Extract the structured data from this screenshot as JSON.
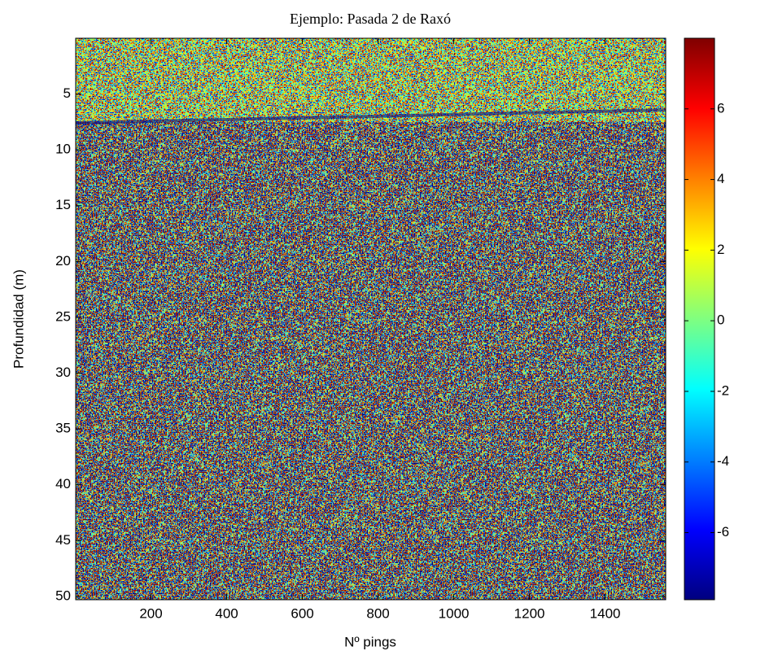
{
  "chart_data": {
    "type": "heatmap",
    "title": "Ejemplo: Pasada 2 de Raxó",
    "x_label": "Nº pings",
    "y_label": "Profundidad (m)",
    "xlim": [
      1,
      1560
    ],
    "xticks": [
      200,
      400,
      600,
      800,
      1000,
      1200,
      1400
    ],
    "ylim": [
      0,
      50.3
    ],
    "y_reversed": true,
    "yticks": [
      5,
      10,
      15,
      20,
      25,
      30,
      35,
      40,
      45,
      50
    ],
    "colormap": "jet",
    "clim": [
      -7.9,
      8.0
    ],
    "colorbar_ticks": [
      -6,
      -4,
      -2,
      0,
      2,
      4,
      6
    ]
  }
}
